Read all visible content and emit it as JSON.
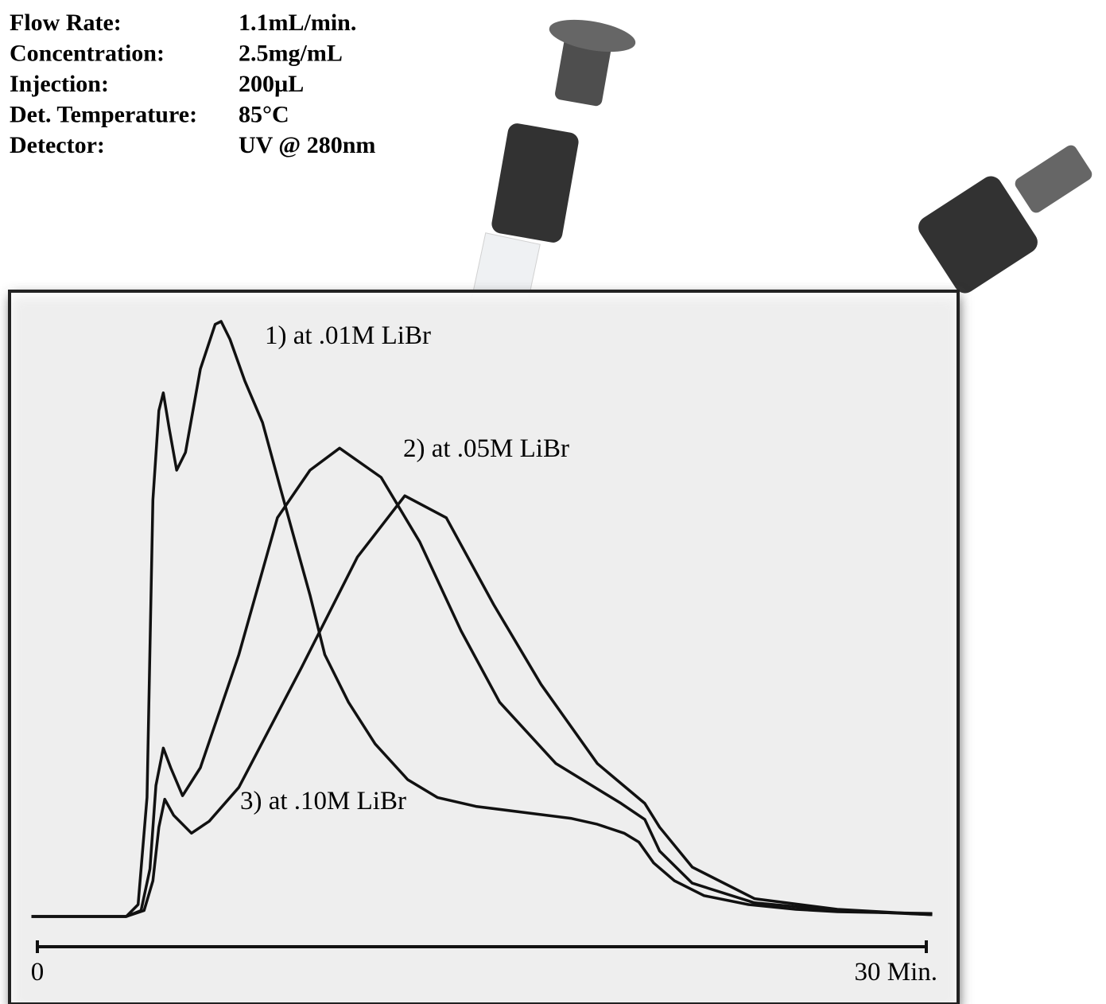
{
  "chart_data": {
    "type": "line",
    "conditions": [
      {
        "label": "Flow Rate:",
        "value": "1.1mL/min."
      },
      {
        "label": "Concentration:",
        "value": "2.5mg/mL"
      },
      {
        "label": "Injection:",
        "value": "200µL"
      },
      {
        "label": "Det. Temperature:",
        "value": "85°C"
      },
      {
        "label": "Detector:",
        "value": "UV @ 280nm"
      }
    ],
    "xlim": [
      -0.3,
      30.3
    ],
    "xticks": [
      0,
      {
        "value": 30,
        "label": "30 Min."
      }
    ],
    "ylim": [
      0,
      100
    ],
    "series": [
      {
        "name": "1) at .01M LiBr",
        "color": "#111111",
        "x": [
          -0.2,
          3,
          3.4,
          3.7,
          3.9,
          4.1,
          4.25,
          4.45,
          4.7,
          5.0,
          5.5,
          6.0,
          6.2,
          6.5,
          7.0,
          7.6,
          8.2,
          8.7,
          9.2,
          9.7,
          10.5,
          11.4,
          12.5,
          13.5,
          14.8,
          16.4,
          18,
          18.9,
          19.8,
          20.3,
          20.8,
          21.5,
          22.5,
          24,
          25.6,
          27,
          30.2
        ],
        "values": [
          0,
          0,
          2,
          20,
          70,
          85,
          88,
          82,
          75,
          78,
          92,
          99.5,
          100,
          97,
          90,
          83,
          72,
          63,
          54,
          44,
          36,
          29,
          23,
          20,
          18.5,
          17.5,
          16.5,
          15.5,
          14,
          12.5,
          9,
          6,
          3.5,
          2,
          1.2,
          0.8,
          0.5
        ]
      },
      {
        "name": "2) at .05M LiBr",
        "color": "#111111",
        "x": [
          -0.2,
          3,
          3.5,
          3.8,
          4.0,
          4.25,
          4.5,
          4.9,
          5.5,
          6.8,
          8.1,
          9.2,
          10.2,
          11.6,
          12.9,
          14.3,
          15.6,
          17.5,
          19.7,
          20.5,
          21,
          22.1,
          24.2,
          27,
          30.2
        ],
        "values": [
          0,
          0,
          1,
          8,
          22,
          28.3,
          25,
          20.3,
          25,
          44,
          67,
          75,
          78.7,
          73.8,
          63,
          48,
          36,
          25.7,
          19,
          16.3,
          11,
          5.6,
          2.3,
          1,
          0.3
        ]
      },
      {
        "name": "3) at .10M LiBr",
        "color": "#111111",
        "x": [
          -0.2,
          3,
          3.6,
          3.9,
          4.1,
          4.3,
          4.6,
          5.2,
          5.8,
          6.8,
          8.9,
          10.8,
          12.4,
          13.8,
          15.4,
          17,
          18.9,
          20.5,
          21,
          22.1,
          24.2,
          27,
          30.2
        ],
        "values": [
          0,
          0,
          1,
          6,
          15,
          19.7,
          17,
          14,
          16,
          21.7,
          41.7,
          60.4,
          70.7,
          67,
          52.4,
          39,
          25.7,
          19,
          15,
          8.3,
          3,
          1.2,
          0.3
        ]
      }
    ]
  }
}
